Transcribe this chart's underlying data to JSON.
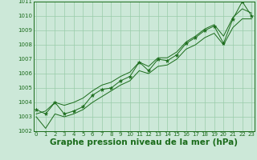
{
  "x": [
    0,
    1,
    2,
    3,
    4,
    5,
    6,
    7,
    8,
    9,
    10,
    11,
    12,
    13,
    14,
    15,
    16,
    17,
    18,
    19,
    20,
    21,
    22,
    23
  ],
  "y_main": [
    1003.5,
    1003.2,
    1004.0,
    1003.2,
    1003.4,
    1003.7,
    1004.5,
    1004.9,
    1005.0,
    1005.5,
    1005.8,
    1006.8,
    1006.2,
    1007.0,
    1006.9,
    1007.3,
    1008.1,
    1008.5,
    1009.0,
    1009.3,
    1008.1,
    1009.8,
    1011.0,
    1010.0
  ],
  "y_upper_trend": [
    1003.2,
    1003.4,
    1004.0,
    1003.8,
    1004.0,
    1004.3,
    1004.8,
    1005.2,
    1005.4,
    1005.8,
    1006.1,
    1006.8,
    1006.5,
    1007.1,
    1007.1,
    1007.5,
    1008.2,
    1008.6,
    1009.1,
    1009.4,
    1008.6,
    1009.9,
    1010.5,
    1010.2
  ],
  "y_lower_trend": [
    1003.0,
    1002.2,
    1003.2,
    1003.0,
    1003.2,
    1003.5,
    1004.0,
    1004.4,
    1004.8,
    1005.2,
    1005.5,
    1006.2,
    1006.0,
    1006.5,
    1006.6,
    1007.0,
    1007.7,
    1008.0,
    1008.5,
    1008.8,
    1008.0,
    1009.2,
    1009.8,
    1009.8
  ],
  "ylim": [
    1002,
    1011
  ],
  "xlim": [
    -0.3,
    23.3
  ],
  "yticks": [
    1002,
    1003,
    1004,
    1005,
    1006,
    1007,
    1008,
    1009,
    1010,
    1011
  ],
  "xticks": [
    0,
    1,
    2,
    3,
    4,
    5,
    6,
    7,
    8,
    9,
    10,
    11,
    12,
    13,
    14,
    15,
    16,
    17,
    18,
    19,
    20,
    21,
    22,
    23
  ],
  "xlabel": "Graphe pression niveau de la mer (hPa)",
  "line_color": "#1a6b1a",
  "bg_color": "#cce8d8",
  "grid_color": "#99ccaa",
  "tick_fontsize": 5.0,
  "xlabel_fontsize": 7.5
}
